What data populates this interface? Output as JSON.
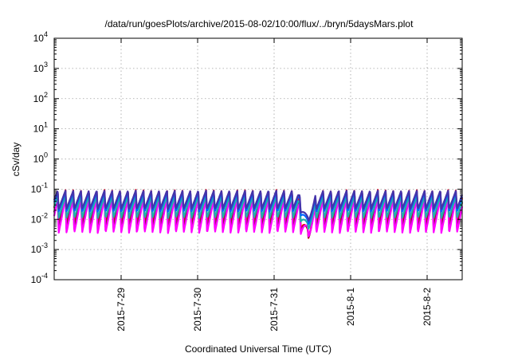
{
  "chart_data": {
    "type": "line",
    "title": "/data/run/goesPlots/archive/2015-08-02/10:00/flux/../bryn/5daysMars.plot",
    "xlabel": "Coordinated Universal Time (UTC)",
    "ylabel": "cSv/day",
    "y_scale": "log",
    "ylim": [
      0.0001,
      10000
    ],
    "y_ticks": [
      {
        "value": 0.0001,
        "base": "10",
        "exp": "-4"
      },
      {
        "value": 0.001,
        "base": "10",
        "exp": "-3"
      },
      {
        "value": 0.01,
        "base": "10",
        "exp": "-2"
      },
      {
        "value": 0.1,
        "base": "10",
        "exp": "-1"
      },
      {
        "value": 1,
        "base": "10",
        "exp": "0"
      },
      {
        "value": 10,
        "base": "10",
        "exp": "1"
      },
      {
        "value": 100,
        "base": "10",
        "exp": "2"
      },
      {
        "value": 1000,
        "base": "10",
        "exp": "3"
      },
      {
        "value": 10000,
        "base": "10",
        "exp": "4"
      }
    ],
    "xlim": [
      "2015-07-28 03:00",
      "2015-08-02 11:00"
    ],
    "x_ticks": [
      {
        "value": "2015-07-29 00:00",
        "label": "2015-7-29"
      },
      {
        "value": "2015-07-30 00:00",
        "label": "2015-7-30"
      },
      {
        "value": "2015-07-31 00:00",
        "label": "2015-7-31"
      },
      {
        "value": "2015-08-01 00:00",
        "label": "2015-8-1"
      },
      {
        "value": "2015-08-02 00:00",
        "label": "2015-8-2"
      }
    ],
    "grid": true,
    "legend": "none",
    "pattern": {
      "description": "sawtooth orbital dose-rate traces, one peak roughly every 2.45 hours",
      "period_hours": 2.45,
      "dip": {
        "time": "2015-07-31 10:30",
        "min_value": 0.0013
      }
    },
    "series": [
      {
        "color": "#ff0000",
        "low": 0.0065,
        "high": 0.095
      },
      {
        "color": "#7a1f3d",
        "low": 0.0045,
        "high": 0.07
      },
      {
        "color": "#ff00ff",
        "low": 0.0035,
        "high": 0.05
      },
      {
        "color": "#20b2aa",
        "low": 0.011,
        "high": 0.06
      },
      {
        "color": "#0066ff",
        "low": 0.018,
        "high": 0.08
      },
      {
        "color": "#4433aa",
        "low": 0.022,
        "high": 0.09
      }
    ]
  }
}
